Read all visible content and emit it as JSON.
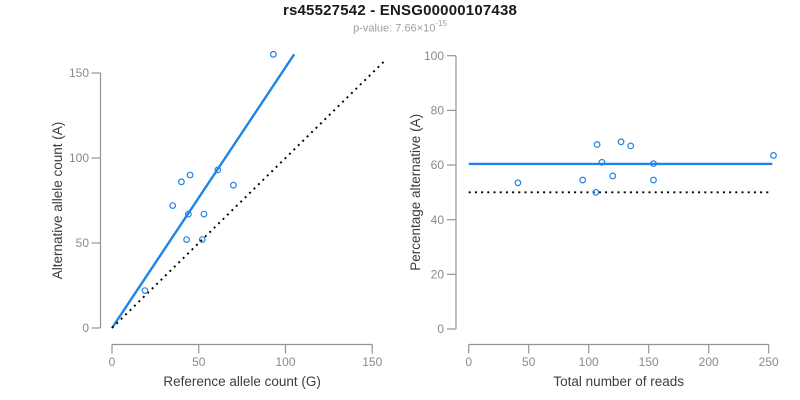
{
  "header": {
    "title": "rs45527542 - ENSG00000107438",
    "subtitle_prefix": "p-value: 7.66×10",
    "subtitle_exponent": "-15"
  },
  "colors": {
    "accent_blue": "#1f83e8",
    "axis_line_gray": "#949494",
    "tick_label_gray": "#8a8a8a",
    "axis_title_gray": "#3d3d3d",
    "dotted_black": "#000000",
    "background": "#ffffff"
  },
  "chart_data": [
    {
      "type": "scatter",
      "panel": "left",
      "xlabel": "Reference allele count (G)",
      "ylabel": "Alternative allele count (A)",
      "xlim": [
        0,
        150
      ],
      "ylim": [
        0,
        165
      ],
      "xticks": [
        0,
        50,
        100,
        150
      ],
      "yticks": [
        0,
        50,
        100,
        150
      ],
      "grid": false,
      "legend": "none",
      "marker": "open-circle",
      "points": [
        [
          93,
          161
        ],
        [
          61,
          93
        ],
        [
          45,
          90
        ],
        [
          40,
          86
        ],
        [
          70,
          84
        ],
        [
          35,
          72
        ],
        [
          44,
          67
        ],
        [
          53,
          67
        ],
        [
          43,
          52
        ],
        [
          52,
          52
        ],
        [
          19,
          22
        ]
      ],
      "lines": [
        {
          "name": "regression-line",
          "style": "solid",
          "color_key": "accent_blue",
          "x1": 0,
          "y1": 0,
          "x2": 105,
          "y2": 161
        },
        {
          "name": "identity-line",
          "style": "dotted",
          "color_key": "dotted_black",
          "x1": 0,
          "y1": 0,
          "x2": 158,
          "y2": 158
        }
      ]
    },
    {
      "type": "scatter",
      "panel": "right",
      "xlabel": "Total number of reads",
      "ylabel": "Percentage alternative (A)",
      "xlim": [
        0,
        255
      ],
      "ylim": [
        0,
        100
      ],
      "xticks": [
        0,
        50,
        100,
        150,
        200,
        250
      ],
      "yticks": [
        0,
        20,
        40,
        60,
        80,
        100
      ],
      "grid": false,
      "legend": "none",
      "marker": "open-circle",
      "points": [
        [
          254,
          63.5
        ],
        [
          154,
          60.5
        ],
        [
          135,
          67
        ],
        [
          127,
          68.5
        ],
        [
          154,
          54.5
        ],
        [
          107,
          67.5
        ],
        [
          111,
          61
        ],
        [
          120,
          56
        ],
        [
          95,
          54.5
        ],
        [
          106,
          50
        ],
        [
          41,
          53.5
        ]
      ],
      "lines": [
        {
          "name": "mean-percentage-line",
          "style": "solid",
          "color_key": "accent_blue",
          "x1": 0,
          "y1": 60.4,
          "x2": 253,
          "y2": 60.4
        },
        {
          "name": "fifty-percent-line",
          "style": "dotted",
          "color_key": "dotted_black",
          "x1": 0,
          "y1": 50,
          "x2": 250,
          "y2": 50
        }
      ]
    }
  ]
}
